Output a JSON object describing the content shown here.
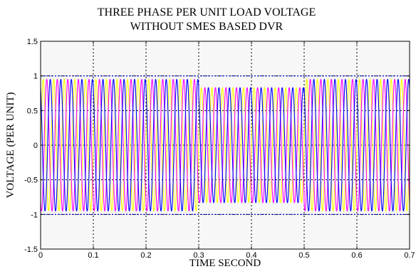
{
  "chart_data": {
    "type": "line",
    "title_line1": "THREE PHASE PER UNIT LOAD VOLTAGE",
    "title_line2": "WITHOUT SMES BASED DVR",
    "xlabel": "TIME SECOND",
    "ylabel": "VOLTAGE (PER UNIT)",
    "xlim": [
      0,
      0.7
    ],
    "ylim": [
      -1.5,
      1.5
    ],
    "xticks": [
      "0",
      "0.1",
      "0.2",
      "0.3",
      "0.4",
      "0.5",
      "0.6",
      "0.7"
    ],
    "yticks": [
      "1.5",
      "1",
      "0.5",
      "0",
      "-0.5",
      "-1",
      "-1.5"
    ],
    "xtick_values": [
      0,
      0.1,
      0.2,
      0.3,
      0.4,
      0.5,
      0.6,
      0.7
    ],
    "ytick_values": [
      1.5,
      1,
      0.5,
      0,
      -0.5,
      -1,
      -1.5
    ],
    "grid": true,
    "reference_lines": [
      1,
      -1
    ],
    "frequency_hz": 50,
    "amplitude_segments": [
      {
        "t_start": 0,
        "t_end": 0.3,
        "amplitude": 0.95
      },
      {
        "t_start": 0.3,
        "t_end": 0.5,
        "amplitude": 0.83
      },
      {
        "t_start": 0.5,
        "t_end": 0.7,
        "amplitude": 0.95
      }
    ],
    "series": [
      {
        "phase_deg": 0,
        "color": "#ffff00"
      },
      {
        "phase_deg": -120,
        "color": "#ff00ff"
      },
      {
        "phase_deg": 120,
        "color": "#0000ff"
      }
    ],
    "dotted_line_color": "#0000c8",
    "frame_color": "#000000",
    "background_color": "#ffffff",
    "plot_background_color": "#f7f7f7"
  }
}
